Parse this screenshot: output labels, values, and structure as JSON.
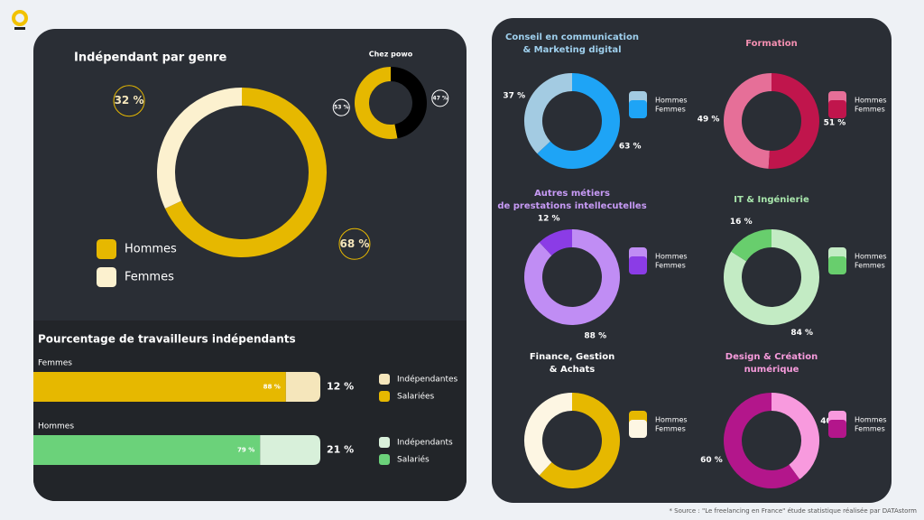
{
  "chart_data": [
    {
      "type": "donut",
      "title": "Indépendant par genre",
      "categories": [
        "Hommes",
        "Femmes"
      ],
      "values": [
        68,
        32
      ],
      "value_labels": [
        "68 %",
        "32 %"
      ],
      "colors": [
        "#e6b800",
        "#fcf1cf"
      ],
      "direction": "clockwise"
    },
    {
      "type": "donut",
      "title": "Chez powo",
      "values": [
        53,
        47
      ],
      "value_labels": [
        "53 %",
        "47 %"
      ],
      "colors": [
        "#e6b800",
        "#000000"
      ],
      "direction": "counterclockwise"
    },
    {
      "type": "stacked-bar",
      "title": "Pourcentage de travailleurs indépendants",
      "rows": [
        {
          "name": "Femmes",
          "series": [
            {
              "name": "Salariées",
              "color": "#e6b800",
              "value": 88,
              "value_label": "88 %"
            },
            {
              "name": "Indépendantes",
              "color": "#f5e6bb",
              "value": 12,
              "value_label": "12 %"
            }
          ]
        },
        {
          "name": "Hommes",
          "series": [
            {
              "name": "Salariés",
              "color": "#6bd27a",
              "value": 79,
              "value_label": "79 %"
            },
            {
              "name": "Indépendants",
              "color": "#d8f0da",
              "value": 21,
              "value_label": "21 %"
            }
          ]
        }
      ]
    },
    {
      "type": "donut",
      "title": [
        "Conseil en communication",
        "& Marketing digital"
      ],
      "title_color": "#9fd0ee",
      "categories": [
        "Hommes",
        "Femmes"
      ],
      "values": [
        37,
        63
      ],
      "value_labels": [
        "37 %",
        "63 %"
      ],
      "colors": [
        "#a3cbe2",
        "#1ea4f6"
      ],
      "direction": "counterclockwise"
    },
    {
      "type": "donut",
      "title": [
        "Formation"
      ],
      "title_color": "#f48fb1",
      "categories": [
        "Hommes",
        "Femmes"
      ],
      "values": [
        49,
        51
      ],
      "value_labels": [
        "49 %",
        "51 %"
      ],
      "colors": [
        "#e66f98",
        "#c0154c"
      ],
      "direction": "counterclockwise"
    },
    {
      "type": "donut",
      "title": [
        "Autres métiers",
        "de prestations intellecutelles"
      ],
      "title_color": "#c79af5",
      "categories": [
        "Hommes",
        "Femmes"
      ],
      "values": [
        88,
        12
      ],
      "value_labels": [
        "88 %",
        "12 %"
      ],
      "colors": [
        "#c08df4",
        "#8b3ce6"
      ],
      "direction": "clockwise"
    },
    {
      "type": "donut",
      "title": [
        "IT & Ingénierie"
      ],
      "title_color": "#a8e6ac",
      "categories": [
        "Hommes",
        "Femmes"
      ],
      "values": [
        84,
        16
      ],
      "value_labels": [
        "84 %",
        "16 %"
      ],
      "colors": [
        "#c3ebc4",
        "#68ce6d"
      ],
      "direction": "clockwise"
    },
    {
      "type": "donut",
      "title": [
        "Finance, Gestion",
        "& Achats"
      ],
      "title_color": "#ffffff",
      "categories": [
        "Hommes",
        "Femmes"
      ],
      "values": [
        62,
        38
      ],
      "colors": [
        "#e6b800",
        "#fdf6e3"
      ],
      "direction": "clockwise"
    },
    {
      "type": "donut",
      "title": [
        "Design & Création",
        "numérique"
      ],
      "title_color": "#f79bdc",
      "categories": [
        "Hommes",
        "Femmes"
      ],
      "values": [
        40,
        60
      ],
      "value_labels": [
        "40 %",
        "60 %"
      ],
      "colors": [
        "#f89ade",
        "#b3168b"
      ],
      "direction": "clockwise"
    }
  ],
  "source": "* Source : \"Le freelancing en France\" étude statistique réalisée par DATAstorm"
}
